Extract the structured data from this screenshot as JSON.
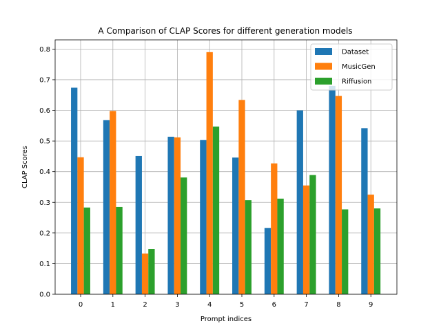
{
  "chart_data": {
    "type": "bar",
    "title": "A Comparison of CLAP Scores for different generation models",
    "xlabel": "Prompt indices",
    "ylabel": "CLAP Scores",
    "categories": [
      "0",
      "1",
      "2",
      "3",
      "4",
      "5",
      "6",
      "7",
      "8",
      "9"
    ],
    "ylim": [
      0,
      0.83
    ],
    "yticks": [
      "0.0",
      "0.1",
      "0.2",
      "0.3",
      "0.4",
      "0.5",
      "0.6",
      "0.7",
      "0.8"
    ],
    "grid": true,
    "legend_position": "top-right",
    "series": [
      {
        "name": "Dataset",
        "color": "#1f77b4",
        "values": [
          0.674,
          0.568,
          0.451,
          0.514,
          0.503,
          0.446,
          0.216,
          0.6,
          0.68,
          0.542
        ]
      },
      {
        "name": "MusicGen",
        "color": "#ff7f0e",
        "values": [
          0.447,
          0.598,
          0.133,
          0.512,
          0.79,
          0.634,
          0.427,
          0.355,
          0.647,
          0.325
        ]
      },
      {
        "name": "Riffusion",
        "color": "#2ca02c",
        "values": [
          0.283,
          0.285,
          0.148,
          0.381,
          0.547,
          0.307,
          0.312,
          0.389,
          0.277,
          0.28
        ]
      }
    ]
  }
}
